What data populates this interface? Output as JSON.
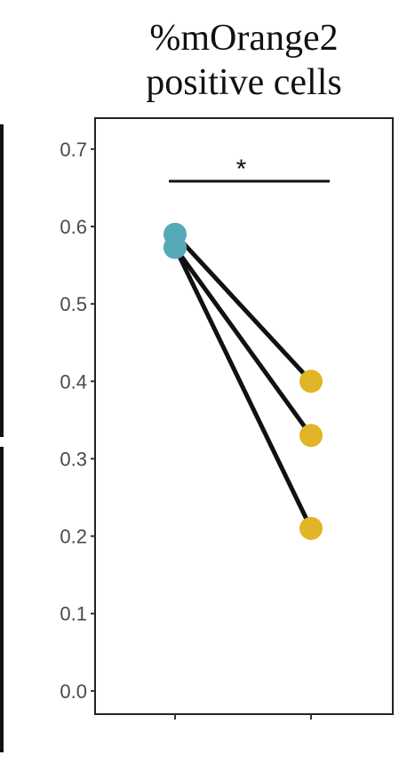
{
  "chart_data": {
    "type": "scatter",
    "title_lines": [
      "%mOrange2",
      "positive cells"
    ],
    "categories": [
      "",
      ""
    ],
    "yticks": [
      "0.0",
      "0.1",
      "0.2",
      "0.3",
      "0.4",
      "0.5",
      "0.6",
      "0.7"
    ],
    "ylim": [
      -0.03,
      0.74
    ],
    "pairs": [
      {
        "before": 0.59,
        "after": 0.4
      },
      {
        "before": 0.573,
        "after": 0.33
      },
      {
        "before": 0.573,
        "after": 0.21
      }
    ],
    "colors": {
      "before": "#56a9b7",
      "after": "#e0b526",
      "line": "#111111"
    },
    "significance": {
      "label": "*",
      "from": 0,
      "to": 1
    },
    "grid": false,
    "legend": "none"
  }
}
